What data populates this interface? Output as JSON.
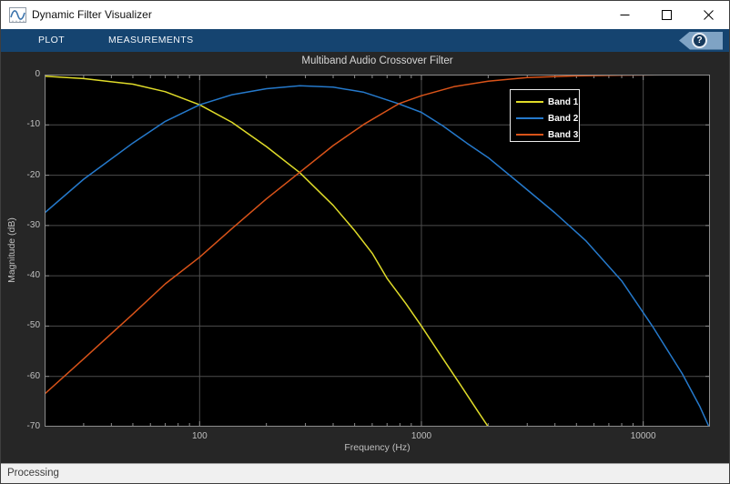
{
  "window": {
    "title": "Dynamic Filter Visualizer",
    "controls": {
      "minimize": "minimize",
      "maximize": "maximize",
      "close": "close"
    }
  },
  "toolbar": {
    "tabs": [
      {
        "label": "PLOT"
      },
      {
        "label": "MEASUREMENTS"
      }
    ],
    "help_label": "?"
  },
  "status_bar": {
    "text": "Processing"
  },
  "colors": {
    "titlebar_bg": "#ffffff",
    "toolbar_bg": "#154470",
    "help_banner": "#7fa3c4",
    "figure_bg": "#262626",
    "plot_bg": "#000000",
    "grid": "#4d4d4d",
    "axis": "#8c8c8c",
    "tick_label": "#bfbfbf",
    "title_text": "#d6d6d6",
    "legend_border": "#ececec"
  },
  "chart_data": {
    "type": "line",
    "title": "Multiband Audio Crossover Filter",
    "xlabel": "Frequency (Hz)",
    "ylabel": "Magnitude (dB)",
    "x_scale": "log",
    "xlim": [
      20,
      20000
    ],
    "ylim": [
      -70,
      0
    ],
    "x_ticks": [
      100,
      1000,
      10000
    ],
    "y_ticks": [
      0,
      -10,
      -20,
      -30,
      -40,
      -50,
      -60,
      -70
    ],
    "grid": true,
    "legend_position": "upper right",
    "series": [
      {
        "name": "Band 1",
        "color": "#e0dc29",
        "x": [
          20,
          30,
          50,
          70,
          100,
          140,
          200,
          283,
          400,
          500,
          600,
          700,
          850,
          1000,
          1200,
          1500,
          1800,
          2000
        ],
        "y": [
          -0.3,
          -0.8,
          -1.9,
          -3.4,
          -6,
          -9.5,
          -14.3,
          -19.5,
          -26,
          -31,
          -35.5,
          -40.5,
          -45.5,
          -50,
          -55.3,
          -61.7,
          -67,
          -70
        ]
      },
      {
        "name": "Band 2",
        "color": "#2579cb",
        "x": [
          20,
          30,
          50,
          70,
          100,
          140,
          200,
          283,
          400,
          550,
          790,
          1000,
          1250,
          1600,
          2000,
          2800,
          4000,
          5500,
          8000,
          11000,
          15000,
          18000,
          19800
        ],
        "y": [
          -27.5,
          -20.8,
          -13.6,
          -9.3,
          -6,
          -4,
          -2.8,
          -2.2,
          -2.5,
          -3.5,
          -5.8,
          -7.5,
          -10.2,
          -13.6,
          -16.5,
          -21.8,
          -27.5,
          -33,
          -41,
          -50,
          -59.5,
          -66,
          -70
        ]
      },
      {
        "name": "Band 3",
        "color": "#d95319",
        "x": [
          20,
          30,
          50,
          70,
          100,
          140,
          200,
          283,
          400,
          550,
          790,
          1000,
          1400,
          2000,
          3000,
          5000,
          8000,
          12000,
          20000
        ],
        "y": [
          -63.5,
          -56.5,
          -47.6,
          -41.6,
          -36.3,
          -30.6,
          -24.7,
          -19.4,
          -14.1,
          -9.9,
          -5.8,
          -4.2,
          -2.4,
          -1.3,
          -0.6,
          -0.25,
          -0.1,
          -0.05,
          0
        ]
      }
    ]
  }
}
